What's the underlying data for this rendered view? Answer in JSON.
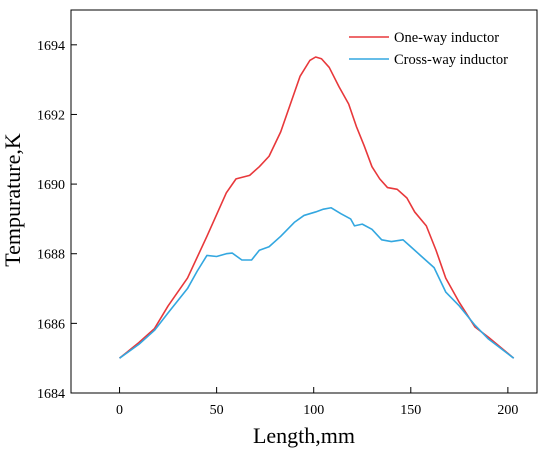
{
  "chart_data": {
    "type": "line",
    "title": "",
    "xlabel": "Length,mm",
    "ylabel": "Tempurature,K",
    "xlim": [
      -25,
      215
    ],
    "ylim": [
      1684,
      1695
    ],
    "xticks": [
      0,
      50,
      100,
      150,
      200
    ],
    "yticks": [
      1684,
      1686,
      1688,
      1690,
      1692,
      1694
    ],
    "grid": false,
    "legend_position": "top-right",
    "series": [
      {
        "name": "One-way inductor",
        "color": "#e8383b",
        "points": [
          [
            0,
            1685.0
          ],
          [
            10,
            1685.45
          ],
          [
            18,
            1685.85
          ],
          [
            25,
            1686.5
          ],
          [
            35,
            1687.3
          ],
          [
            45,
            1688.5
          ],
          [
            55,
            1689.75
          ],
          [
            60,
            1690.15
          ],
          [
            67,
            1690.25
          ],
          [
            72,
            1690.5
          ],
          [
            77,
            1690.8
          ],
          [
            83,
            1691.5
          ],
          [
            88,
            1692.3
          ],
          [
            93,
            1693.1
          ],
          [
            98,
            1693.55
          ],
          [
            101,
            1693.65
          ],
          [
            104,
            1693.6
          ],
          [
            108,
            1693.35
          ],
          [
            113,
            1692.8
          ],
          [
            118,
            1692.3
          ],
          [
            122,
            1691.65
          ],
          [
            126,
            1691.1
          ],
          [
            130,
            1690.5
          ],
          [
            134,
            1690.15
          ],
          [
            138,
            1689.9
          ],
          [
            143,
            1689.85
          ],
          [
            148,
            1689.6
          ],
          [
            152,
            1689.2
          ],
          [
            158,
            1688.8
          ],
          [
            163,
            1688.1
          ],
          [
            168,
            1687.3
          ],
          [
            175,
            1686.6
          ],
          [
            183,
            1685.9
          ],
          [
            190,
            1685.6
          ],
          [
            203,
            1685.0
          ]
        ]
      },
      {
        "name": "Cross-way inductor",
        "color": "#33a7e0",
        "points": [
          [
            0,
            1685.0
          ],
          [
            10,
            1685.4
          ],
          [
            18,
            1685.8
          ],
          [
            25,
            1686.3
          ],
          [
            35,
            1687.0
          ],
          [
            40,
            1687.5
          ],
          [
            45,
            1687.95
          ],
          [
            50,
            1687.92
          ],
          [
            55,
            1688.0
          ],
          [
            58,
            1688.02
          ],
          [
            63,
            1687.82
          ],
          [
            68,
            1687.82
          ],
          [
            72,
            1688.1
          ],
          [
            77,
            1688.2
          ],
          [
            83,
            1688.5
          ],
          [
            90,
            1688.9
          ],
          [
            95,
            1689.1
          ],
          [
            101,
            1689.2
          ],
          [
            105,
            1689.28
          ],
          [
            109,
            1689.32
          ],
          [
            114,
            1689.15
          ],
          [
            119,
            1689.0
          ],
          [
            121,
            1688.8
          ],
          [
            125,
            1688.85
          ],
          [
            130,
            1688.7
          ],
          [
            135,
            1688.4
          ],
          [
            140,
            1688.35
          ],
          [
            146,
            1688.4
          ],
          [
            149,
            1688.25
          ],
          [
            155,
            1687.95
          ],
          [
            162,
            1687.6
          ],
          [
            168,
            1686.9
          ],
          [
            175,
            1686.5
          ],
          [
            183,
            1685.95
          ],
          [
            190,
            1685.55
          ],
          [
            203,
            1685.0
          ]
        ]
      }
    ]
  }
}
